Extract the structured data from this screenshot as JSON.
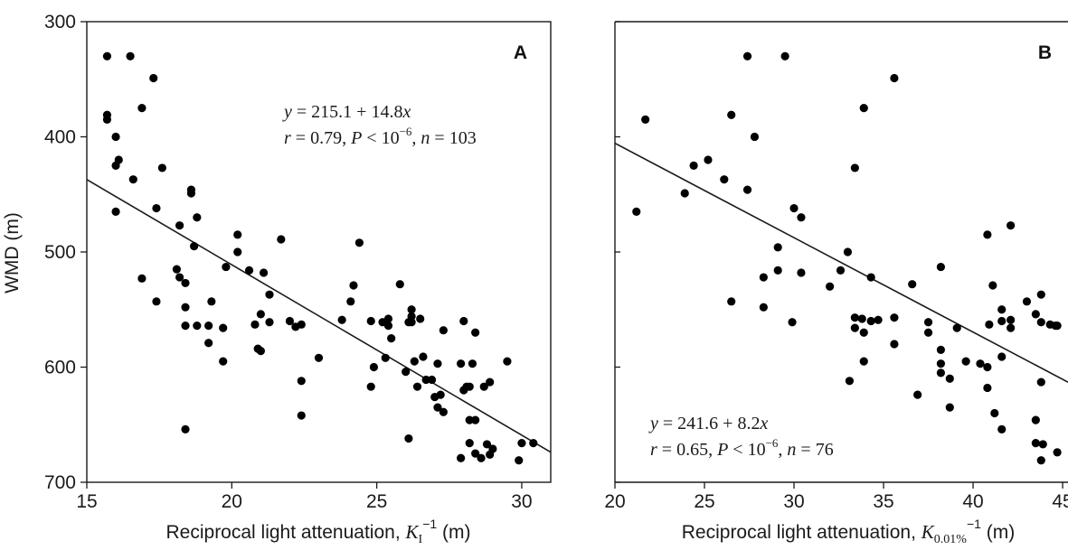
{
  "chart_data": [
    {
      "panel": "A",
      "type": "scatter",
      "ylabel": "WMD (m)",
      "xlabel": {
        "prefix": "Reciprocal light attenuation, ",
        "symbol": "K",
        "subscript": "I",
        "superscript": "−1",
        "unit": " (m)"
      },
      "x_ticks": [
        "15",
        "20",
        "25",
        "30"
      ],
      "y_ticks": [
        "300",
        "400",
        "500",
        "600",
        "700"
      ],
      "xlim": [
        15,
        31
      ],
      "ylim": [
        300,
        700
      ],
      "y_inverted": true,
      "grid": false,
      "regression": {
        "intercept": 215.1,
        "slope": 14.8,
        "equation": {
          "y": "y",
          "intercept_part": " = 215.1 + 14.8",
          "x": "x"
        },
        "stats": {
          "r": "r",
          "r_value": " = 0.79, ",
          "p": "P",
          "p_value": " < 10",
          "p_exp": "−6",
          "sep": ", ",
          "n": "n",
          "n_value": " = 103"
        }
      },
      "points": [
        [
          15.7,
          330
        ],
        [
          16.5,
          330
        ],
        [
          17.3,
          349
        ],
        [
          15.7,
          381
        ],
        [
          15.7,
          385
        ],
        [
          16.9,
          375
        ],
        [
          16.0,
          400
        ],
        [
          16.1,
          420
        ],
        [
          16.0,
          425
        ],
        [
          16.6,
          437
        ],
        [
          17.6,
          427
        ],
        [
          18.6,
          446
        ],
        [
          18.6,
          449
        ],
        [
          16.0,
          465
        ],
        [
          17.4,
          462
        ],
        [
          18.8,
          470
        ],
        [
          18.2,
          477
        ],
        [
          20.2,
          485
        ],
        [
          18.7,
          495
        ],
        [
          20.2,
          500
        ],
        [
          21.7,
          489
        ],
        [
          24.4,
          492
        ],
        [
          16.9,
          523
        ],
        [
          18.1,
          515
        ],
        [
          18.2,
          522
        ],
        [
          18.4,
          527
        ],
        [
          19.8,
          513
        ],
        [
          20.6,
          516
        ],
        [
          21.1,
          518
        ],
        [
          17.4,
          543
        ],
        [
          18.4,
          548
        ],
        [
          19.3,
          543
        ],
        [
          18.4,
          564
        ],
        [
          18.8,
          564
        ],
        [
          19.2,
          564
        ],
        [
          19.7,
          566
        ],
        [
          21.0,
          554
        ],
        [
          21.3,
          537
        ],
        [
          20.8,
          563
        ],
        [
          21.3,
          561
        ],
        [
          22.0,
          560
        ],
        [
          22.2,
          565
        ],
        [
          22.4,
          563
        ],
        [
          19.2,
          579
        ],
        [
          19.7,
          595
        ],
        [
          21.0,
          586
        ],
        [
          20.9,
          584
        ],
        [
          23.0,
          592
        ],
        [
          22.4,
          612
        ],
        [
          22.4,
          642
        ],
        [
          18.4,
          654
        ],
        [
          24.2,
          529
        ],
        [
          24.1,
          543
        ],
        [
          23.8,
          559
        ],
        [
          24.8,
          560
        ],
        [
          25.2,
          561
        ],
        [
          25.4,
          558
        ],
        [
          25.4,
          564
        ],
        [
          25.5,
          575
        ],
        [
          25.3,
          592
        ],
        [
          24.9,
          600
        ],
        [
          24.8,
          617
        ],
        [
          25.8,
          528
        ],
        [
          26.2,
          550
        ],
        [
          26.2,
          556
        ],
        [
          26.2,
          561
        ],
        [
          26.5,
          558
        ],
        [
          26.1,
          561
        ],
        [
          26.6,
          591
        ],
        [
          26.3,
          595
        ],
        [
          26.0,
          604
        ],
        [
          26.4,
          617
        ],
        [
          26.7,
          611
        ],
        [
          26.9,
          611
        ],
        [
          27.1,
          597
        ],
        [
          27.2,
          624
        ],
        [
          27.1,
          635
        ],
        [
          27.3,
          639
        ],
        [
          27.3,
          568
        ],
        [
          28.0,
          560
        ],
        [
          28.4,
          570
        ],
        [
          28.3,
          597
        ],
        [
          27.9,
          597
        ],
        [
          28.1,
          617
        ],
        [
          28.2,
          617
        ],
        [
          28.7,
          617
        ],
        [
          28.9,
          613
        ],
        [
          29.5,
          595
        ],
        [
          27.9,
          679
        ],
        [
          28.2,
          646
        ],
        [
          28.4,
          646
        ],
        [
          28.2,
          666
        ],
        [
          28.8,
          667
        ],
        [
          29.0,
          671
        ],
        [
          28.9,
          676
        ],
        [
          28.4,
          675
        ],
        [
          28.6,
          679
        ],
        [
          30.0,
          666
        ],
        [
          30.4,
          666
        ],
        [
          29.9,
          681
        ],
        [
          26.1,
          662
        ],
        [
          27.0,
          626
        ],
        [
          28.0,
          620
        ]
      ]
    },
    {
      "panel": "B",
      "type": "scatter",
      "ylabel": "",
      "xlabel": {
        "prefix": "Reciprocal light attenuation, ",
        "symbol": "K",
        "subscript": "0.01%",
        "superscript": "−1",
        "unit": " (m)"
      },
      "x_ticks": [
        "20",
        "25",
        "30",
        "35",
        "40",
        "45"
      ],
      "y_ticks": [],
      "xlim": [
        20,
        45.3
      ],
      "ylim": [
        300,
        700
      ],
      "y_inverted": true,
      "grid": false,
      "regression": {
        "intercept": 241.6,
        "slope": 8.2,
        "equation": {
          "y": "y",
          "intercept_part": " = 241.6 + 8.2",
          "x": "x"
        },
        "stats": {
          "r": "r",
          "r_value": " = 0.65, ",
          "p": "P",
          "p_value": " < 10",
          "p_exp": "−6",
          "sep": ", ",
          "n": "n",
          "n_value": " = 76"
        }
      },
      "points": [
        [
          27.4,
          330
        ],
        [
          29.5,
          330
        ],
        [
          35.6,
          349
        ],
        [
          33.9,
          375
        ],
        [
          26.5,
          381
        ],
        [
          21.7,
          385
        ],
        [
          27.8,
          400
        ],
        [
          25.2,
          420
        ],
        [
          24.4,
          425
        ],
        [
          33.4,
          427
        ],
        [
          26.1,
          437
        ],
        [
          27.4,
          446
        ],
        [
          23.9,
          449
        ],
        [
          21.2,
          465
        ],
        [
          30.0,
          462
        ],
        [
          30.4,
          470
        ],
        [
          42.1,
          477
        ],
        [
          40.8,
          485
        ],
        [
          29.1,
          496
        ],
        [
          33.0,
          500
        ],
        [
          28.3,
          522
        ],
        [
          29.1,
          516
        ],
        [
          30.4,
          518
        ],
        [
          32.6,
          516
        ],
        [
          34.3,
          522
        ],
        [
          32.0,
          530
        ],
        [
          36.6,
          528
        ],
        [
          38.2,
          513
        ],
        [
          41.1,
          529
        ],
        [
          43.0,
          543
        ],
        [
          43.8,
          537
        ],
        [
          41.6,
          550
        ],
        [
          41.6,
          560
        ],
        [
          42.1,
          559
        ],
        [
          42.1,
          566
        ],
        [
          43.5,
          554
        ],
        [
          43.8,
          561
        ],
        [
          44.3,
          563
        ],
        [
          44.7,
          564
        ],
        [
          26.5,
          543
        ],
        [
          28.3,
          548
        ],
        [
          29.9,
          561
        ],
        [
          33.4,
          557
        ],
        [
          33.4,
          566
        ],
        [
          33.8,
          558
        ],
        [
          33.9,
          570
        ],
        [
          34.3,
          560
        ],
        [
          34.7,
          559
        ],
        [
          35.6,
          557
        ],
        [
          37.5,
          561
        ],
        [
          37.5,
          570
        ],
        [
          39.1,
          566
        ],
        [
          35.6,
          580
        ],
        [
          33.9,
          595
        ],
        [
          38.2,
          585
        ],
        [
          38.2,
          597
        ],
        [
          38.2,
          605
        ],
        [
          38.7,
          610
        ],
        [
          41.6,
          591
        ],
        [
          40.4,
          597
        ],
        [
          40.8,
          600
        ],
        [
          40.8,
          618
        ],
        [
          33.1,
          612
        ],
        [
          36.9,
          624
        ],
        [
          38.7,
          635
        ],
        [
          41.2,
          640
        ],
        [
          41.6,
          654
        ],
        [
          43.5,
          646
        ],
        [
          43.5,
          666
        ],
        [
          43.8,
          681
        ],
        [
          43.9,
          667
        ],
        [
          44.7,
          674
        ],
        [
          43.8,
          613
        ],
        [
          44.6,
          564
        ],
        [
          40.9,
          563
        ],
        [
          39.6,
          595
        ]
      ]
    }
  ]
}
